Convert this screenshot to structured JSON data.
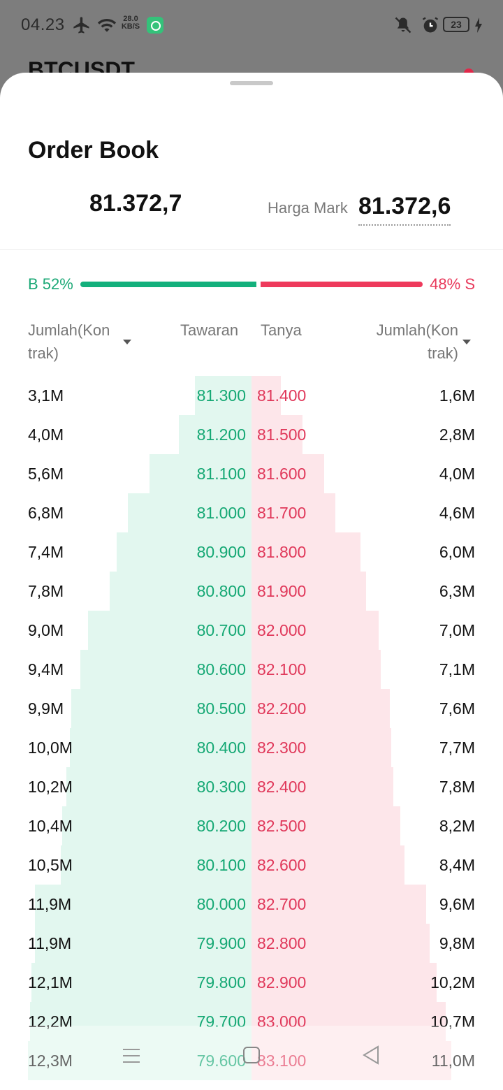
{
  "status_bar": {
    "time": "04.23",
    "net_speed_value": "28.0",
    "net_speed_unit": "KB/S",
    "battery": "23",
    "icons": [
      "airplane-icon",
      "wifi-icon",
      "app-notification-icon",
      "mute-icon",
      "alarm-icon",
      "battery-icon",
      "charging-icon"
    ]
  },
  "background": {
    "symbol": "BTCUSDT"
  },
  "sheet": {
    "title": "Order Book",
    "last_price": "81.372,7",
    "mark_label": "Harga Mark",
    "mark_price": "81.372,6",
    "ratio": {
      "buy_label": "B 52%",
      "sell_label": "48% S",
      "buy_fraction": 0.52,
      "buy_color": "#13b07c",
      "sell_color": "#ee3a5c"
    },
    "headers": {
      "amount_left": "Jumlah(Kon trak)",
      "bid": "Tawaran",
      "ask": "Tanya",
      "amount_right": "Jumlah(Kon trak)"
    },
    "depth_scale_max": 12.3,
    "rows": [
      {
        "bid_amt": "3,1M",
        "bid_amt_num": 3.1,
        "bid": "81.300",
        "ask": "81.400",
        "ask_amt": "1,6M",
        "ask_amt_num": 1.6
      },
      {
        "bid_amt": "4,0M",
        "bid_amt_num": 4.0,
        "bid": "81.200",
        "ask": "81.500",
        "ask_amt": "2,8M",
        "ask_amt_num": 2.8
      },
      {
        "bid_amt": "5,6M",
        "bid_amt_num": 5.6,
        "bid": "81.100",
        "ask": "81.600",
        "ask_amt": "4,0M",
        "ask_amt_num": 4.0
      },
      {
        "bid_amt": "6,8M",
        "bid_amt_num": 6.8,
        "bid": "81.000",
        "ask": "81.700",
        "ask_amt": "4,6M",
        "ask_amt_num": 4.6
      },
      {
        "bid_amt": "7,4M",
        "bid_amt_num": 7.4,
        "bid": "80.900",
        "ask": "81.800",
        "ask_amt": "6,0M",
        "ask_amt_num": 6.0
      },
      {
        "bid_amt": "7,8M",
        "bid_amt_num": 7.8,
        "bid": "80.800",
        "ask": "81.900",
        "ask_amt": "6,3M",
        "ask_amt_num": 6.3
      },
      {
        "bid_amt": "9,0M",
        "bid_amt_num": 9.0,
        "bid": "80.700",
        "ask": "82.000",
        "ask_amt": "7,0M",
        "ask_amt_num": 7.0
      },
      {
        "bid_amt": "9,4M",
        "bid_amt_num": 9.4,
        "bid": "80.600",
        "ask": "82.100",
        "ask_amt": "7,1M",
        "ask_amt_num": 7.1
      },
      {
        "bid_amt": "9,9M",
        "bid_amt_num": 9.9,
        "bid": "80.500",
        "ask": "82.200",
        "ask_amt": "7,6M",
        "ask_amt_num": 7.6
      },
      {
        "bid_amt": "10,0M",
        "bid_amt_num": 10.0,
        "bid": "80.400",
        "ask": "82.300",
        "ask_amt": "7,7M",
        "ask_amt_num": 7.7
      },
      {
        "bid_amt": "10,2M",
        "bid_amt_num": 10.2,
        "bid": "80.300",
        "ask": "82.400",
        "ask_amt": "7,8M",
        "ask_amt_num": 7.8
      },
      {
        "bid_amt": "10,4M",
        "bid_amt_num": 10.4,
        "bid": "80.200",
        "ask": "82.500",
        "ask_amt": "8,2M",
        "ask_amt_num": 8.2
      },
      {
        "bid_amt": "10,5M",
        "bid_amt_num": 10.5,
        "bid": "80.100",
        "ask": "82.600",
        "ask_amt": "8,4M",
        "ask_amt_num": 8.4
      },
      {
        "bid_amt": "11,9M",
        "bid_amt_num": 11.9,
        "bid": "80.000",
        "ask": "82.700",
        "ask_amt": "9,6M",
        "ask_amt_num": 9.6
      },
      {
        "bid_amt": "11,9M",
        "bid_amt_num": 11.9,
        "bid": "79.900",
        "ask": "82.800",
        "ask_amt": "9,8M",
        "ask_amt_num": 9.8
      },
      {
        "bid_amt": "12,1M",
        "bid_amt_num": 12.1,
        "bid": "79.800",
        "ask": "82.900",
        "ask_amt": "10,2M",
        "ask_amt_num": 10.2
      },
      {
        "bid_amt": "12,2M",
        "bid_amt_num": 12.2,
        "bid": "79.700",
        "ask": "83.000",
        "ask_amt": "10,7M",
        "ask_amt_num": 10.7
      },
      {
        "bid_amt": "12,3M",
        "bid_amt_num": 12.3,
        "bid": "79.600",
        "ask": "83.100",
        "ask_amt": "11,0M",
        "ask_amt_num": 11.0
      }
    ]
  },
  "navbar": {
    "icons": [
      "menu-icon",
      "home-icon",
      "back-icon"
    ]
  }
}
